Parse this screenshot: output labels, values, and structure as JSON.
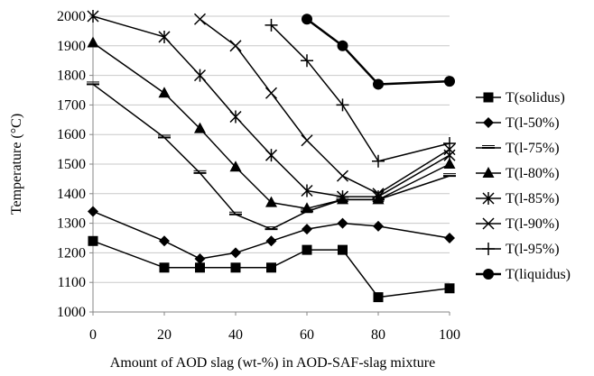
{
  "chart_data": {
    "type": "line",
    "xlabel": "Amount of AOD slag (wt-%) in AOD-SAF-slag mixture",
    "ylabel": "Temperature (°C)",
    "xlim": [
      0,
      100
    ],
    "ylim": [
      1000,
      2000
    ],
    "x_ticks": [
      0,
      20,
      40,
      60,
      80,
      100
    ],
    "y_ticks": [
      1000,
      1100,
      1200,
      1300,
      1400,
      1500,
      1600,
      1700,
      1800,
      1900,
      2000
    ],
    "grid": "horizontal",
    "legend_position": "right",
    "series": [
      {
        "name": "T(solidus)",
        "marker": "square",
        "points": [
          [
            0,
            1240
          ],
          [
            20,
            1150
          ],
          [
            30,
            1150
          ],
          [
            40,
            1150
          ],
          [
            50,
            1150
          ],
          [
            60,
            1210
          ],
          [
            70,
            1210
          ],
          [
            80,
            1050
          ],
          [
            100,
            1080
          ]
        ]
      },
      {
        "name": "T(l-50%)",
        "marker": "diamond",
        "points": [
          [
            0,
            1340
          ],
          [
            20,
            1240
          ],
          [
            30,
            1180
          ],
          [
            40,
            1200
          ],
          [
            50,
            1240
          ],
          [
            60,
            1280
          ],
          [
            70,
            1300
          ],
          [
            80,
            1290
          ],
          [
            100,
            1250
          ]
        ]
      },
      {
        "name": "T(l-75%)",
        "marker": "dash",
        "points": [
          [
            0,
            1770
          ],
          [
            20,
            1590
          ],
          [
            30,
            1470
          ],
          [
            40,
            1330
          ],
          [
            50,
            1280
          ],
          [
            60,
            1340
          ],
          [
            70,
            1380
          ],
          [
            80,
            1380
          ],
          [
            100,
            1460
          ]
        ]
      },
      {
        "name": "T(l-80%)",
        "marker": "triangle",
        "points": [
          [
            0,
            1910
          ],
          [
            20,
            1740
          ],
          [
            30,
            1620
          ],
          [
            40,
            1490
          ],
          [
            50,
            1370
          ],
          [
            60,
            1350
          ],
          [
            70,
            1380
          ],
          [
            80,
            1380
          ],
          [
            100,
            1500
          ]
        ]
      },
      {
        "name": "T(l-85%)",
        "marker": "asterisk",
        "points": [
          [
            0,
            2000
          ],
          [
            20,
            1930
          ],
          [
            30,
            1800
          ],
          [
            40,
            1660
          ],
          [
            50,
            1530
          ],
          [
            60,
            1410
          ],
          [
            70,
            1390
          ],
          [
            80,
            1390
          ],
          [
            100,
            1530
          ]
        ]
      },
      {
        "name": "T(l-90%)",
        "marker": "x",
        "points": [
          [
            30,
            1990
          ],
          [
            40,
            1900
          ],
          [
            50,
            1740
          ],
          [
            60,
            1580
          ],
          [
            70,
            1460
          ],
          [
            80,
            1400
          ],
          [
            100,
            1550
          ]
        ]
      },
      {
        "name": "T(l-95%)",
        "marker": "plus",
        "points": [
          [
            50,
            1970
          ],
          [
            60,
            1850
          ],
          [
            70,
            1700
          ],
          [
            80,
            1510
          ],
          [
            100,
            1570
          ]
        ]
      },
      {
        "name": "T(liquidus)",
        "marker": "circle",
        "points": [
          [
            60,
            1990
          ],
          [
            70,
            1900
          ],
          [
            80,
            1770
          ],
          [
            100,
            1780
          ]
        ]
      }
    ]
  }
}
